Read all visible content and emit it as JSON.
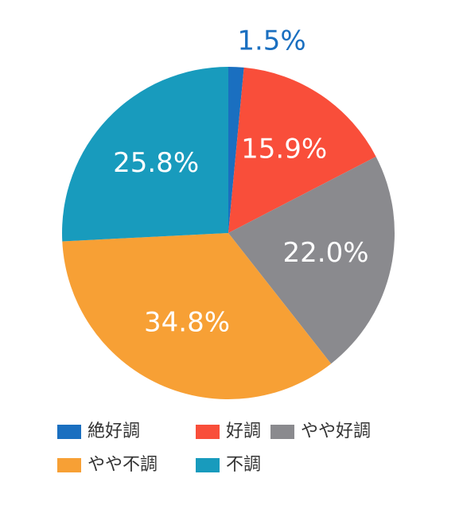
{
  "chart_data": {
    "type": "pie",
    "categories": [
      "絶好調",
      "好調",
      "やや好調",
      "やや不調",
      "不調"
    ],
    "values": [
      1.5,
      15.9,
      22.0,
      34.8,
      25.8
    ],
    "value_labels": [
      "1.5%",
      "15.9%",
      "22.0%",
      "34.8%",
      "25.8%"
    ],
    "colors": [
      "#1a6fc0",
      "#f94e3a",
      "#8a8a8e",
      "#f7a035",
      "#189bbd"
    ]
  }
}
